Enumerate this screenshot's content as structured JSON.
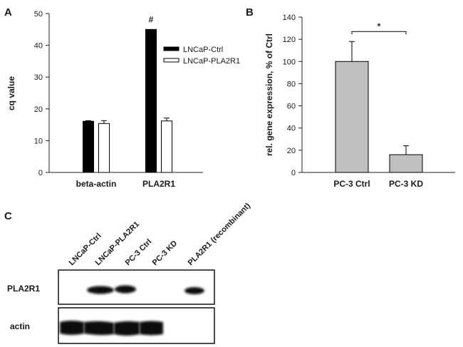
{
  "panels": {
    "a": "A",
    "b": "B",
    "c": "C"
  },
  "chart_data": [
    {
      "type": "bar",
      "panel": "A",
      "ylabel": "cq value",
      "ylim": [
        0,
        50
      ],
      "yticks": [
        0,
        10,
        20,
        30,
        40,
        50
      ],
      "categories": [
        "beta-actin",
        "PLA2R1"
      ],
      "series": [
        {
          "name": "LNCaP-Ctrl",
          "values": [
            16.1,
            45.0
          ],
          "errors": [
            0.2,
            0
          ],
          "color": "#000000"
        },
        {
          "name": "LNCaP-PLA2R1",
          "values": [
            15.4,
            16.2
          ],
          "errors": [
            0.9,
            0.9
          ],
          "color": "#ffffff"
        }
      ],
      "annotations": [
        {
          "text": "#",
          "category": "PLA2R1",
          "series": 0
        }
      ],
      "legend": "top-right"
    },
    {
      "type": "bar",
      "panel": "B",
      "ylabel": "rel. gene expression, % of Ctrl",
      "ylim": [
        0,
        140
      ],
      "yticks": [
        0,
        20,
        40,
        60,
        80,
        100,
        120,
        140
      ],
      "categories": [
        "PC-3 Ctrl",
        "PC-3 KD"
      ],
      "values": [
        100,
        16
      ],
      "errors": [
        18,
        8
      ],
      "color": "#c0c0c0",
      "significance": {
        "text": "*",
        "between": [
          0,
          1
        ],
        "y": 127
      }
    }
  ],
  "blot": {
    "lanes": [
      "LNCaP-Ctrl",
      "LNCaP-PLA2R1",
      "PC-3 Ctrl",
      "PC-3 KD",
      "PLA2R1 (recombinant)"
    ],
    "rows": [
      {
        "label": "PLA2R1",
        "bands": [
          0,
          1,
          1,
          0,
          1
        ]
      },
      {
        "label": "actin",
        "bands": [
          1,
          1,
          1,
          1,
          0
        ]
      }
    ]
  }
}
